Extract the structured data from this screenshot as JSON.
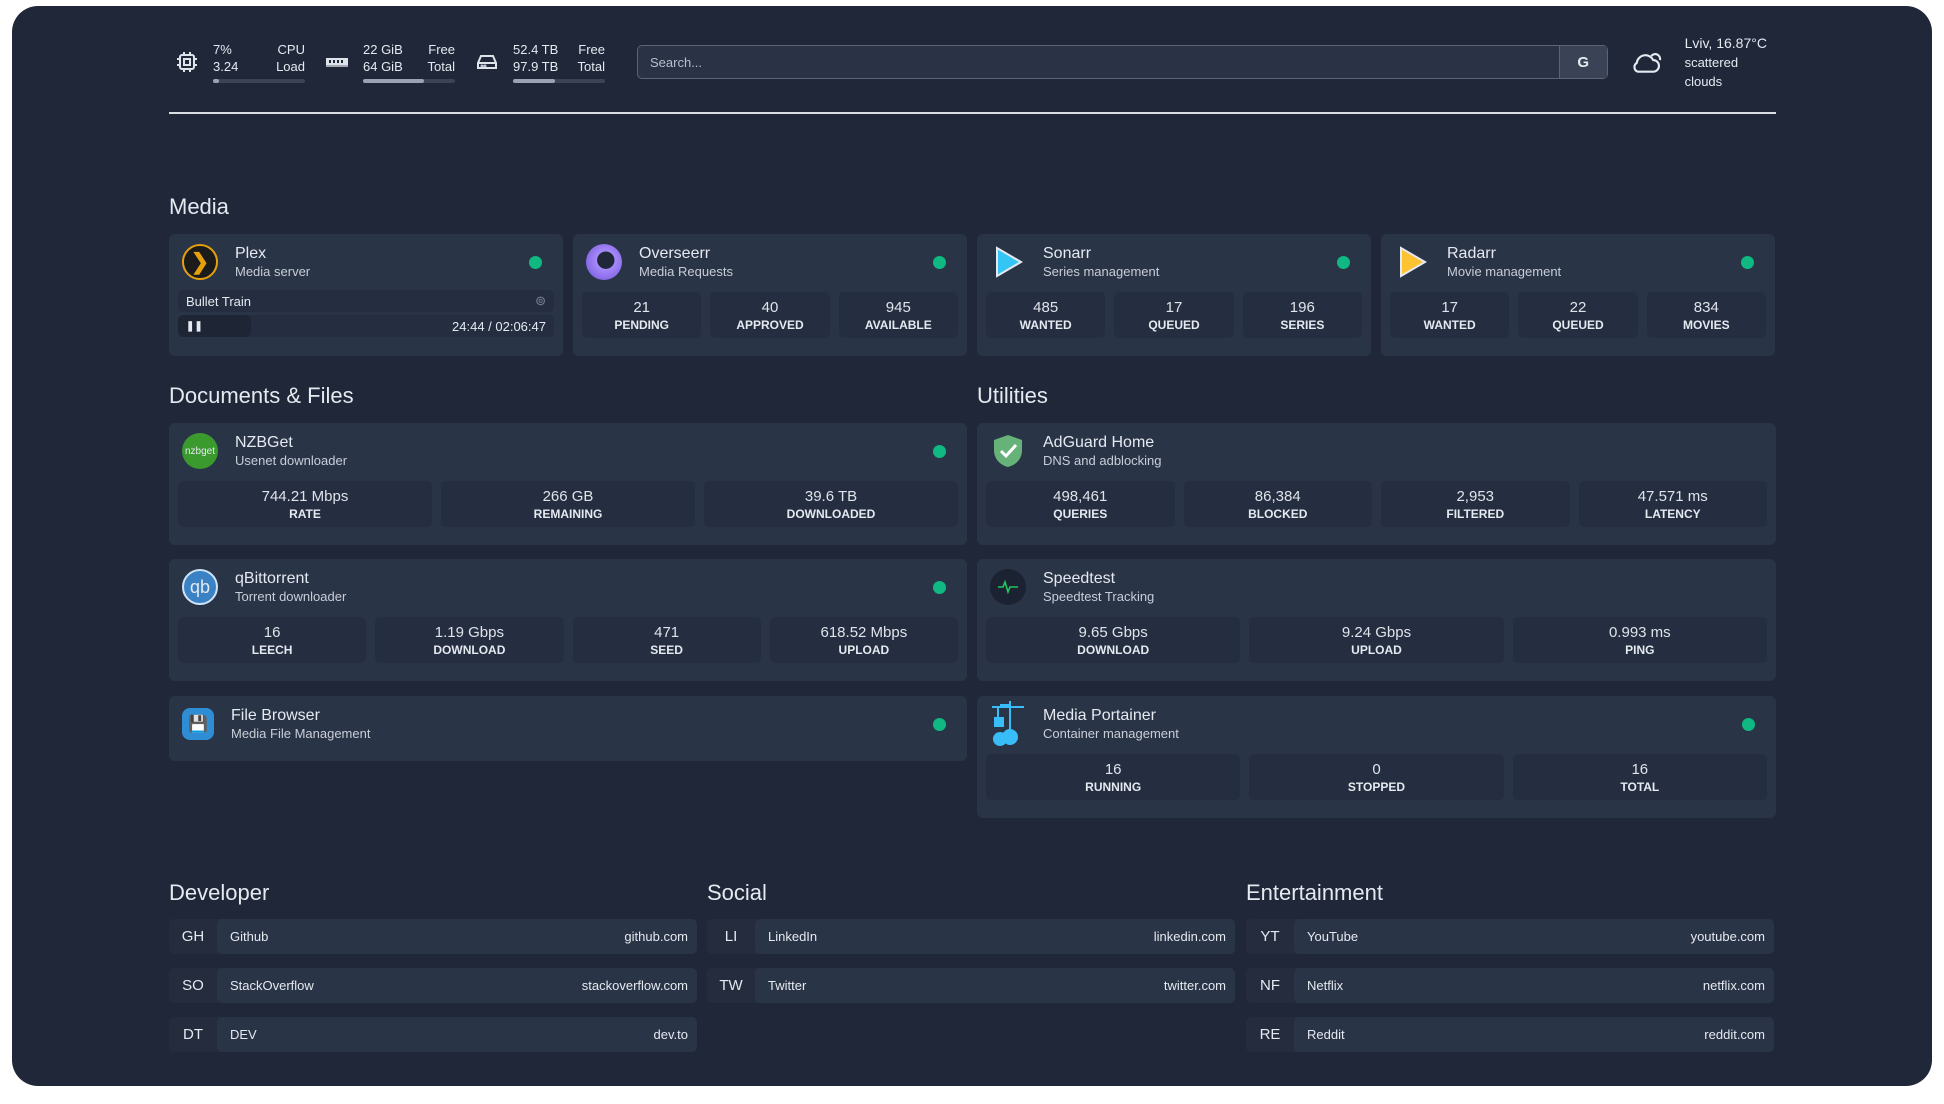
{
  "resources": {
    "cpu": {
      "icon": "cpu-icon",
      "value1": "7%",
      "label1": "CPU",
      "value2": "3.24",
      "label2": "Load",
      "percent": 7
    },
    "memory": {
      "icon": "memory-icon",
      "value1": "22 GiB",
      "label1": "Free",
      "value2": "64 GiB",
      "label2": "Total",
      "percent": 66
    },
    "disk": {
      "icon": "disk-icon",
      "value1": "52.4 TB",
      "label1": "Free",
      "value2": "97.9 TB",
      "label2": "Total",
      "percent": 46
    }
  },
  "search": {
    "placeholder": "Search...",
    "button": "G"
  },
  "weather": {
    "icon": "cloud-icon",
    "location": "Lviv, 16.87°C",
    "condition": "scattered clouds"
  },
  "sections": {
    "media": "Media",
    "documents": "Documents & Files",
    "utilities": "Utilities",
    "developer": "Developer",
    "social": "Social",
    "entertainment": "Entertainment"
  },
  "plex": {
    "name": "Plex",
    "desc": "Media server",
    "title": "Bullet Train",
    "time": "24:44 / 02:06:47",
    "progress": 19.5
  },
  "media": [
    {
      "name": "Overseerr",
      "desc": "Media Requests",
      "stats": [
        {
          "v": "21",
          "l": "PENDING"
        },
        {
          "v": "40",
          "l": "APPROVED"
        },
        {
          "v": "945",
          "l": "AVAILABLE"
        }
      ]
    },
    {
      "name": "Sonarr",
      "desc": "Series management",
      "stats": [
        {
          "v": "485",
          "l": "WANTED"
        },
        {
          "v": "17",
          "l": "QUEUED"
        },
        {
          "v": "196",
          "l": "SERIES"
        }
      ]
    },
    {
      "name": "Radarr",
      "desc": "Movie management",
      "stats": [
        {
          "v": "17",
          "l": "WANTED"
        },
        {
          "v": "22",
          "l": "QUEUED"
        },
        {
          "v": "834",
          "l": "MOVIES"
        }
      ]
    }
  ],
  "docs": [
    {
      "name": "NZBGet",
      "desc": "Usenet downloader",
      "logo": "nzbget",
      "stats": [
        {
          "v": "744.21 Mbps",
          "l": "RATE"
        },
        {
          "v": "266 GB",
          "l": "REMAINING"
        },
        {
          "v": "39.6 TB",
          "l": "DOWNLOADED"
        }
      ]
    },
    {
      "name": "qBittorrent",
      "desc": "Torrent downloader",
      "logo": "qb",
      "stats": [
        {
          "v": "16",
          "l": "LEECH"
        },
        {
          "v": "1.19 Gbps",
          "l": "DOWNLOAD"
        },
        {
          "v": "471",
          "l": "SEED"
        },
        {
          "v": "618.52 Mbps",
          "l": "UPLOAD"
        }
      ]
    },
    {
      "name": "File Browser",
      "desc": "Media File Management"
    }
  ],
  "utilities": [
    {
      "name": "AdGuard Home",
      "desc": "DNS and adblocking",
      "stats": [
        {
          "v": "498,461",
          "l": "QUERIES"
        },
        {
          "v": "86,384",
          "l": "BLOCKED"
        },
        {
          "v": "2,953",
          "l": "FILTERED"
        },
        {
          "v": "47.571 ms",
          "l": "LATENCY"
        }
      ]
    },
    {
      "name": "Speedtest",
      "desc": "Speedtest Tracking",
      "stats": [
        {
          "v": "9.65 Gbps",
          "l": "DOWNLOAD"
        },
        {
          "v": "9.24 Gbps",
          "l": "UPLOAD"
        },
        {
          "v": "0.993 ms",
          "l": "PING"
        }
      ]
    },
    {
      "name": "Media Portainer",
      "desc": "Container management",
      "stats": [
        {
          "v": "16",
          "l": "RUNNING"
        },
        {
          "v": "0",
          "l": "STOPPED"
        },
        {
          "v": "16",
          "l": "TOTAL"
        }
      ]
    }
  ],
  "bookmarks": {
    "developer": [
      {
        "abbr": "GH",
        "name": "Github",
        "url": "github.com"
      },
      {
        "abbr": "SO",
        "name": "StackOverflow",
        "url": "stackoverflow.com"
      },
      {
        "abbr": "DT",
        "name": "DEV",
        "url": "dev.to"
      }
    ],
    "social": [
      {
        "abbr": "LI",
        "name": "LinkedIn",
        "url": "linkedin.com"
      },
      {
        "abbr": "TW",
        "name": "Twitter",
        "url": "twitter.com"
      }
    ],
    "entertainment": [
      {
        "abbr": "YT",
        "name": "YouTube",
        "url": "youtube.com"
      },
      {
        "abbr": "NF",
        "name": "Netflix",
        "url": "netflix.com"
      },
      {
        "abbr": "RE",
        "name": "Reddit",
        "url": "reddit.com"
      }
    ]
  },
  "colors": {
    "background": "#1f2739",
    "card": "#2a3447",
    "status_online": "#10b981"
  }
}
